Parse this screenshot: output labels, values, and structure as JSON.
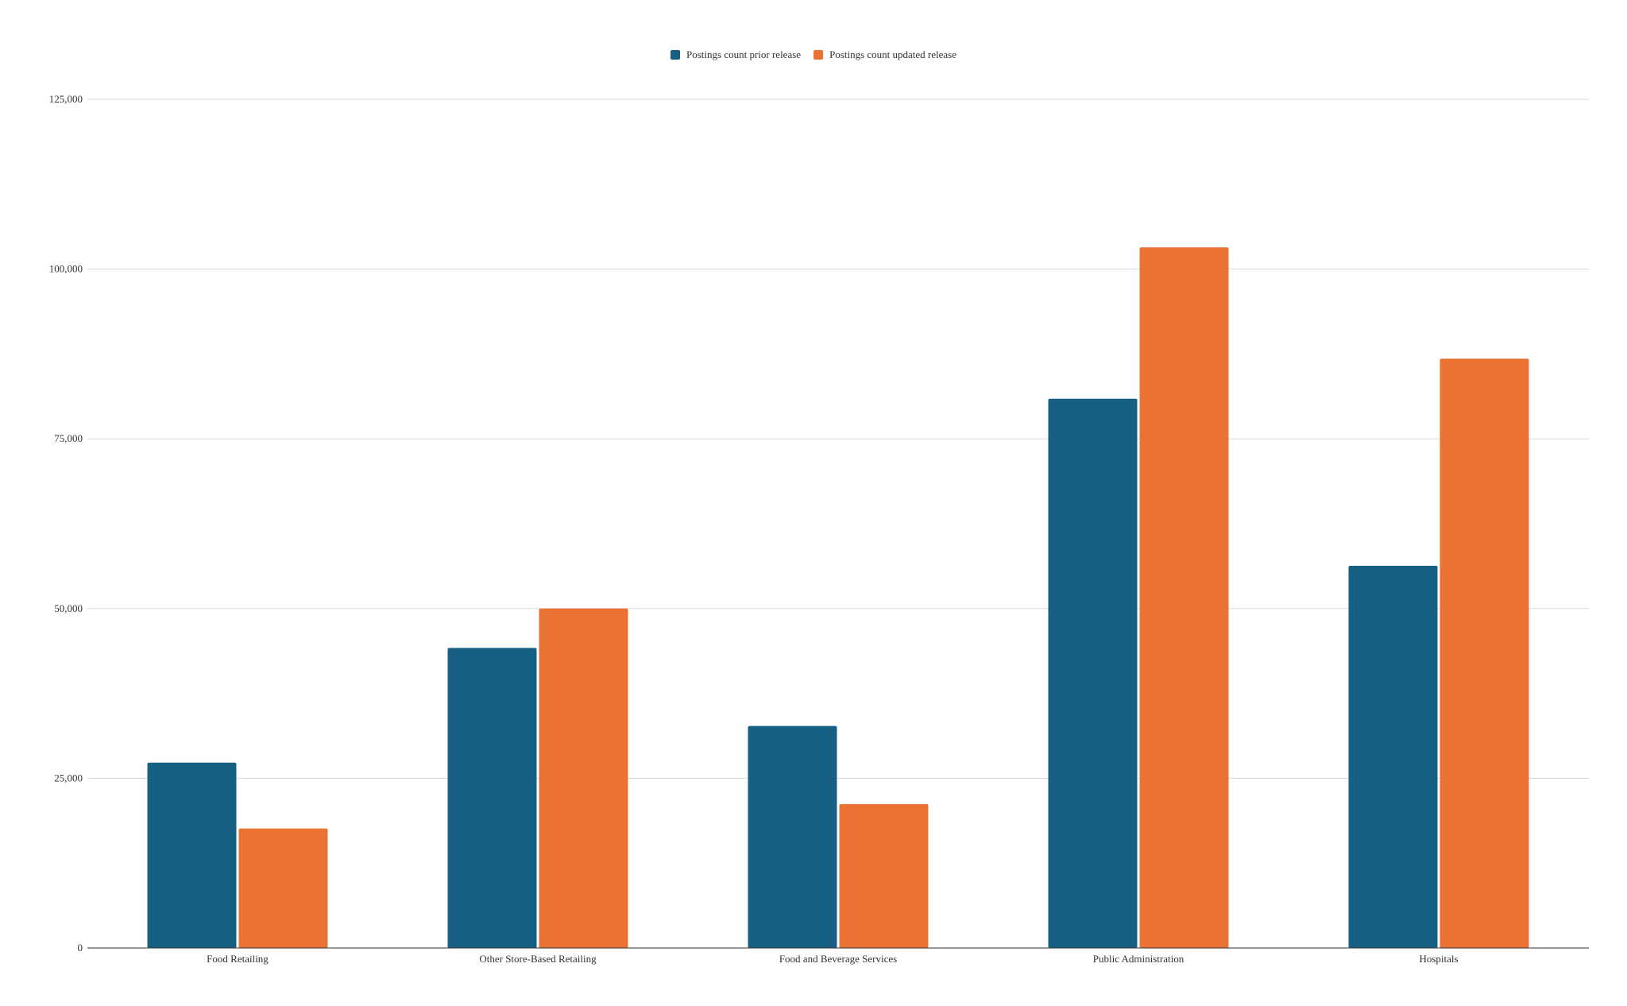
{
  "chart_data": {
    "type": "bar",
    "categories": [
      "Food Retailing",
      "Other Store-Based Retailing",
      "Food and Beverage Services",
      "Public Administration",
      "Hospitals"
    ],
    "series": [
      {
        "name": "Postings count prior release",
        "color": "#176083",
        "values": [
          27300,
          44200,
          32700,
          80900,
          56300
        ]
      },
      {
        "name": "Postings count updated release",
        "color": "#ea7233",
        "values": [
          17600,
          50000,
          21200,
          103200,
          86800
        ]
      }
    ],
    "title": "",
    "xlabel": "",
    "ylabel": "",
    "ylim": [
      0,
      125000
    ],
    "yticks": [
      0,
      25000,
      50000,
      75000,
      100000,
      125000
    ],
    "ytick_labels": [
      "0",
      "25,000",
      "50,000",
      "75,000",
      "100,000",
      "125,000"
    ],
    "grid": true,
    "legend_position": "top-center"
  }
}
